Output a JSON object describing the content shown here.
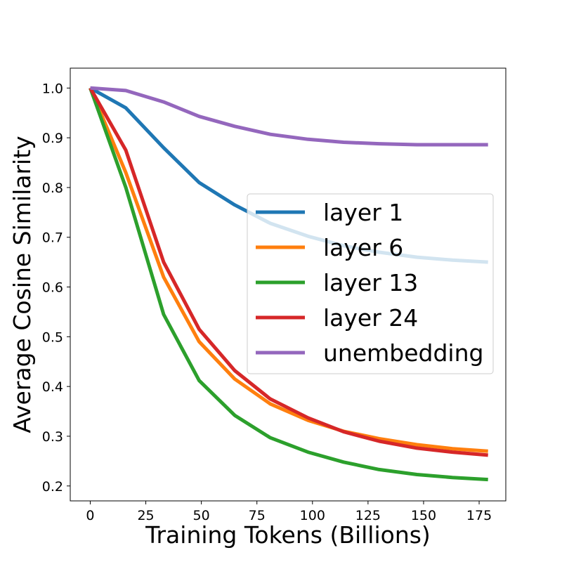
{
  "chart_data": {
    "type": "line",
    "title": "",
    "xlabel": "Training Tokens (Billions)",
    "ylabel": "Average Cosine Similarity",
    "xlim": [
      -9,
      187
    ],
    "ylim": [
      0.17,
      1.04
    ],
    "xticks": [
      0,
      25,
      50,
      75,
      100,
      125,
      150,
      175
    ],
    "yticks": [
      0.2,
      0.3,
      0.4,
      0.5,
      0.6,
      0.7,
      0.8,
      0.9,
      1.0
    ],
    "xtick_labels": [
      "0",
      "25",
      "50",
      "75",
      "100",
      "125",
      "150",
      "175"
    ],
    "ytick_labels": [
      "0.2",
      "0.3",
      "0.4",
      "0.5",
      "0.6",
      "0.7",
      "0.8",
      "0.9",
      "1.0"
    ],
    "grid": false,
    "legend_position": "center-right",
    "x": [
      0,
      16,
      33,
      49,
      65,
      81,
      98,
      114,
      130,
      147,
      163,
      179
    ],
    "series": [
      {
        "name": "layer 1",
        "color": "#1f77b4",
        "values": [
          1.0,
          0.96,
          0.88,
          0.81,
          0.765,
          0.728,
          0.702,
          0.683,
          0.67,
          0.66,
          0.654,
          0.65
        ]
      },
      {
        "name": "layer 6",
        "color": "#ff7f0e",
        "values": [
          1.0,
          0.83,
          0.62,
          0.49,
          0.415,
          0.365,
          0.332,
          0.31,
          0.295,
          0.283,
          0.275,
          0.27
        ]
      },
      {
        "name": "layer 13",
        "color": "#2ca02c",
        "values": [
          1.0,
          0.8,
          0.545,
          0.412,
          0.342,
          0.297,
          0.268,
          0.248,
          0.233,
          0.223,
          0.217,
          0.213
        ]
      },
      {
        "name": "layer 24",
        "color": "#d62728",
        "values": [
          1.0,
          0.875,
          0.65,
          0.515,
          0.432,
          0.375,
          0.337,
          0.309,
          0.29,
          0.276,
          0.268,
          0.262
        ]
      },
      {
        "name": "unembedding",
        "color": "#9467bd",
        "values": [
          1.0,
          0.995,
          0.972,
          0.943,
          0.923,
          0.907,
          0.897,
          0.891,
          0.888,
          0.886,
          0.886,
          0.886
        ]
      }
    ]
  }
}
